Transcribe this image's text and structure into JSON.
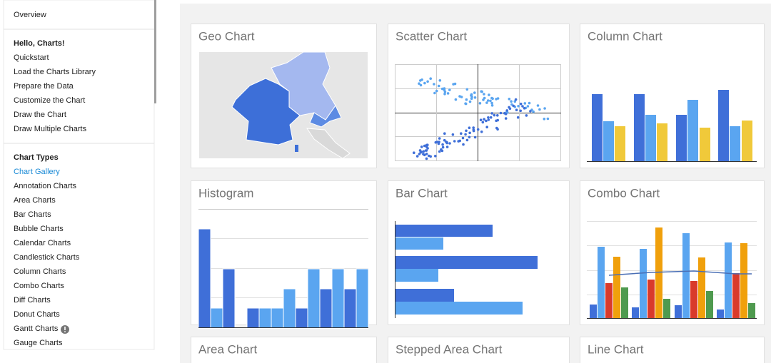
{
  "sidebar": {
    "overview": "Overview",
    "sections": [
      {
        "heading": "Hello, Charts!",
        "items": [
          "Quickstart",
          "Load the Charts Library",
          "Prepare the Data",
          "Customize the Chart",
          "Draw the Chart",
          "Draw Multiple Charts"
        ]
      },
      {
        "heading": "Chart Types",
        "items": [
          "Chart Gallery",
          "Annotation Charts",
          "Area Charts",
          "Bar Charts",
          "Bubble Charts",
          "Calendar Charts",
          "Candlestick Charts",
          "Column Charts",
          "Combo Charts",
          "Diff Charts",
          "Donut Charts",
          "Gantt Charts",
          "Gauge Charts"
        ]
      }
    ]
  },
  "gallery": {
    "cards": [
      "Geo Chart",
      "Scatter Chart",
      "Column Chart",
      "Histogram",
      "Bar Chart",
      "Combo Chart",
      "Area Chart",
      "Stepped Area Chart",
      "Line Chart"
    ]
  }
}
